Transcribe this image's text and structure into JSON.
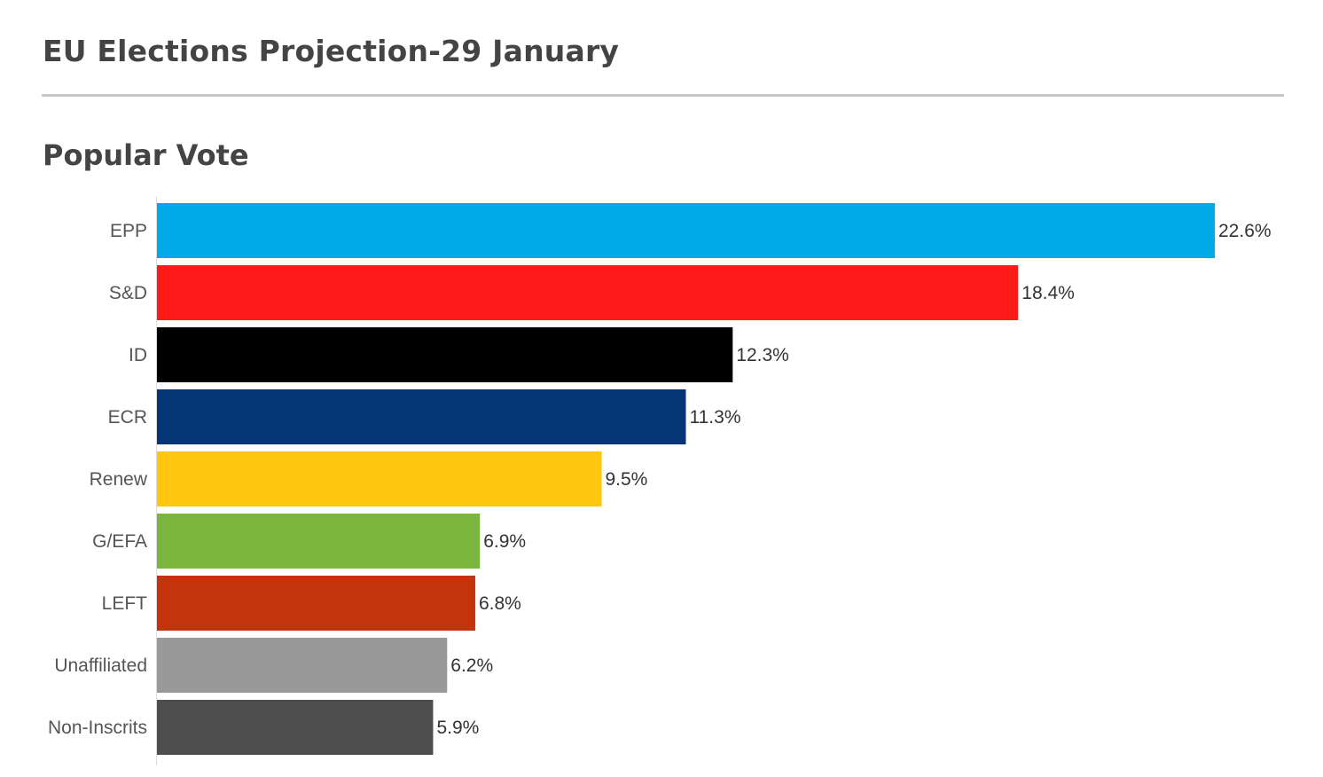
{
  "header": {
    "title": "EU Elections Projection-29 January",
    "section_title": "Popular Vote"
  },
  "chart_data": {
    "type": "bar",
    "orientation": "horizontal",
    "title": "Popular Vote",
    "xlabel": "",
    "ylabel": "",
    "grid": false,
    "categories": [
      "EPP",
      "S&D",
      "ID",
      "ECR",
      "Renew",
      "G/EFA",
      "LEFT",
      "Unaffiliated",
      "Non-Inscrits"
    ],
    "values": [
      22.6,
      18.4,
      12.3,
      11.3,
      9.5,
      6.9,
      6.8,
      6.2,
      5.9
    ],
    "value_labels": [
      "22.6%",
      "18.4%",
      "12.3%",
      "11.3%",
      "9.5%",
      "6.9%",
      "6.8%",
      "6.2%",
      "5.9%"
    ],
    "colors": [
      "#00aae8",
      "#ff1a1a",
      "#000000",
      "#053575",
      "#fec60c",
      "#7ab63e",
      "#c4330c",
      "#999999",
      "#4d4d4d"
    ],
    "xlim": [
      0,
      22.6
    ]
  }
}
